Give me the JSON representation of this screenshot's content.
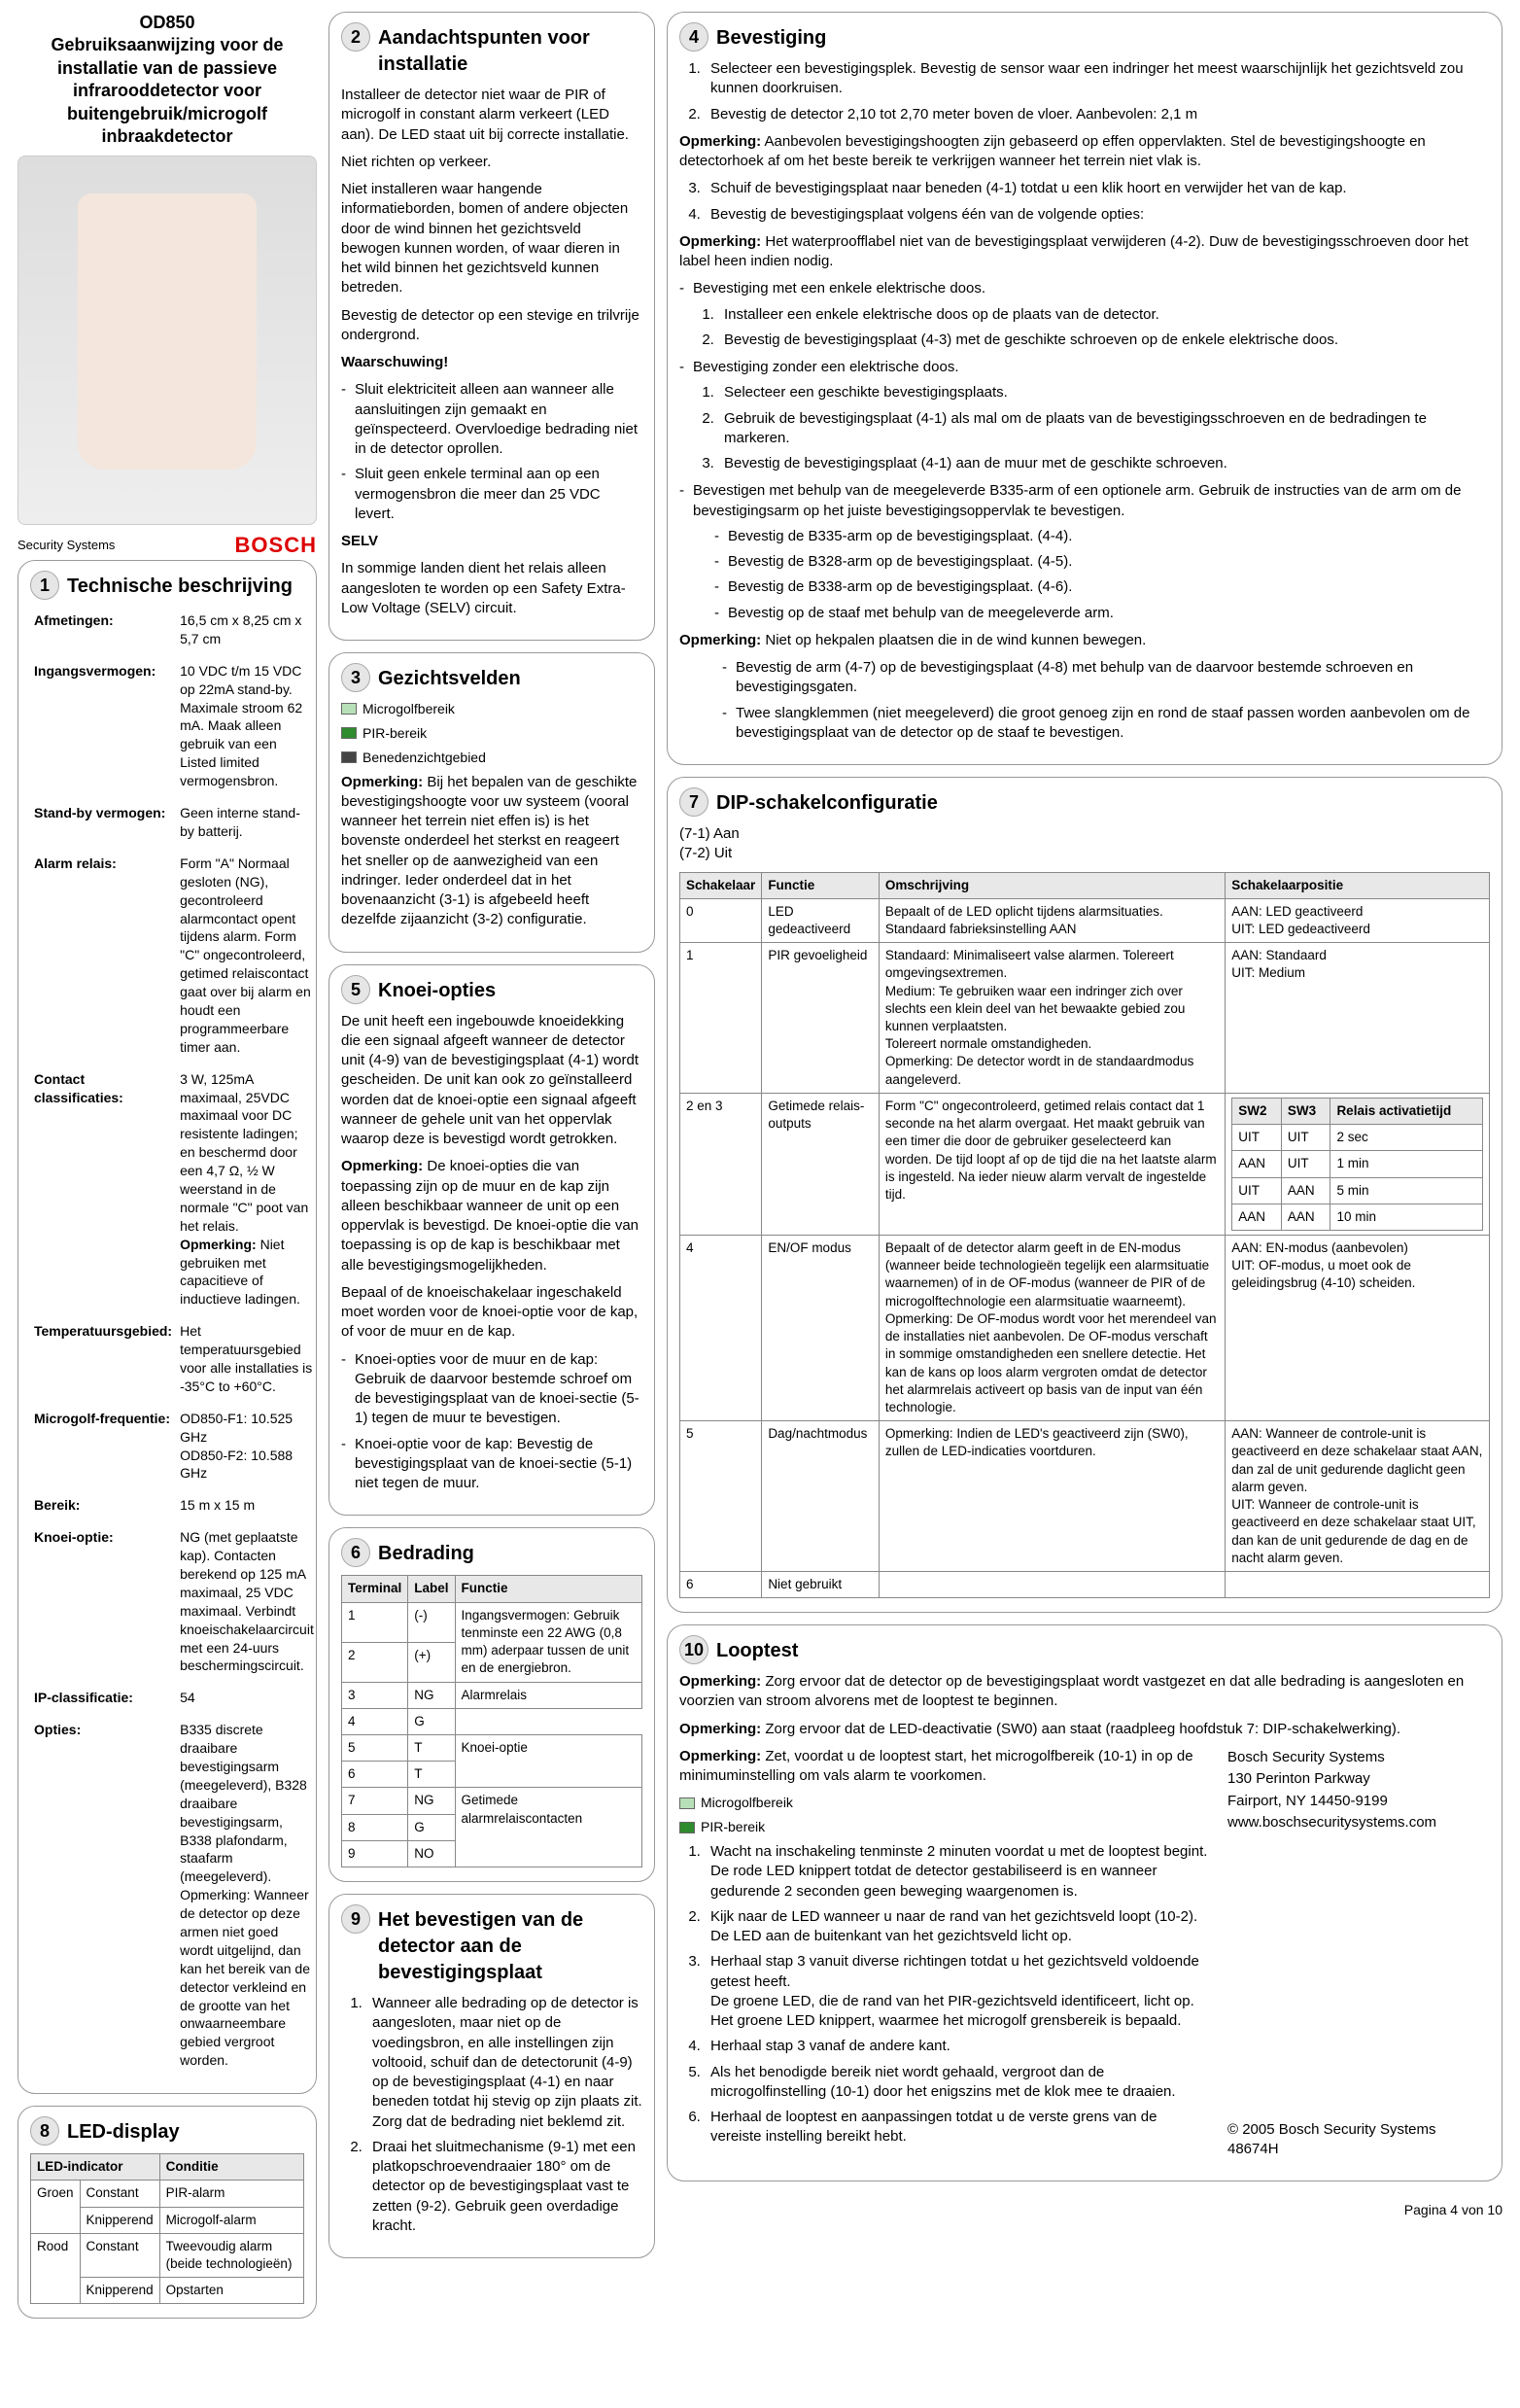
{
  "header": {
    "model": "OD850",
    "title": "Gebruiksaanwijzing voor de installatie van de passieve infrarooddetector voor buitengebruik/microgolf inbraakdetector",
    "security_systems": "Security Systems",
    "brand": "BOSCH"
  },
  "colors": {
    "micro": "#b8e0b8",
    "pir": "#2e8b2e",
    "below": "#444444"
  },
  "s1": {
    "num": "1",
    "title": "Technische beschrijving",
    "rows": [
      {
        "k": "Afmetingen:",
        "v": "16,5 cm x 8,25 cm x 5,7 cm"
      },
      {
        "k": "Ingangsvermogen:",
        "v": "10 VDC t/m 15 VDC op 22mA stand-by. Maximale stroom 62 mA. Maak alleen gebruik van een Listed limited vermogensbron."
      },
      {
        "k": "Stand-by vermogen:",
        "v": "Geen interne stand-by batterij."
      },
      {
        "k": "Alarm relais:",
        "v": "Form \"A\" Normaal gesloten (NG), gecontroleerd alarmcontact opent tijdens alarm. Form \"C\" ongecontroleerd, getimed relaiscontact gaat over bij alarm en houdt een programmeerbare timer aan."
      },
      {
        "k": "Contact classificaties:",
        "v": "3 W, 125mA maximaal, 25VDC maximaal voor DC resistente ladingen; en beschermd door een 4,7 Ω, ½ W weerstand in de normale \"C\" poot van het relais.",
        "extra_b": "Opmerking:",
        "extra": " Niet gebruiken met capacitieve of inductieve ladingen."
      },
      {
        "k": "Temperatuursgebied:",
        "v": "Het temperatuursgebied voor alle installaties is -35°C to +60°C."
      },
      {
        "k": "Microgolf-frequentie:",
        "v": "OD850-F1: 10.525 GHz\nOD850-F2: 10.588 GHz"
      },
      {
        "k": "Bereik:",
        "v": "15 m x 15 m"
      },
      {
        "k": "Knoei-optie:",
        "v": "NG (met geplaatste kap). Contacten berekend op 125 mA maximaal, 25 VDC maximaal. Verbindt knoeischakelaarcircuit met een 24-uurs beschermingscircuit."
      },
      {
        "k": "IP-classificatie:",
        "v": "54"
      },
      {
        "k": "Opties:",
        "v": "B335 discrete draaibare bevestigingsarm (meegeleverd), B328 draaibare bevestigingsarm, B338 plafondarm, staafarm (meegeleverd). Opmerking: Wanneer de detector op deze armen niet goed wordt uitgelijnd, dan kan het bereik van de detector verkleind en de grootte van het onwaarneembare gebied vergroot worden."
      }
    ]
  },
  "s2": {
    "num": "2",
    "title": "Aandachtspunten voor installatie",
    "paras": [
      "Installeer de detector niet waar de PIR of microgolf in constant alarm verkeert (LED aan). De LED staat uit bij correcte installatie.",
      "Niet richten op verkeer.",
      "Niet installeren waar hangende informatieborden, bomen of andere objecten door de wind binnen het gezichtsveld bewogen kunnen worden, of waar dieren in het wild binnen het gezichtsveld kunnen betreden.",
      "Bevestig de detector op een stevige en trilvrije ondergrond."
    ],
    "warn": "Waarschuwing!",
    "warns": [
      "Sluit elektriciteit alleen aan wanneer alle aansluitingen zijn gemaakt en geïnspecteerd. Overvloedige bedrading niet in de detector oprollen.",
      "Sluit geen enkele terminal aan op een vermogensbron die meer dan 25 VDC levert."
    ],
    "selv_h": "SELV",
    "selv": "In sommige landen dient het relais alleen aangesloten te worden op een Safety Extra-Low Voltage (SELV) circuit."
  },
  "s3": {
    "num": "3",
    "title": "Gezichtsvelden",
    "items": [
      {
        "color": "micro",
        "label": "Microgolfbereik"
      },
      {
        "color": "pir",
        "label": "PIR-bereik"
      },
      {
        "color": "below",
        "label": "Benedenzichtgebied"
      }
    ],
    "op_b": "Opmerking:",
    "op": " Bij het bepalen van de geschikte bevestigingshoogte voor uw systeem (vooral wanneer het terrein niet effen is) is het bovenste onderdeel het sterkst en reageert het sneller op de aanwezigheid van een indringer. Ieder onderdeel dat in het bovenaanzicht (3-1) is afgebeeld heeft dezelfde zijaanzicht (3-2) configuratie."
  },
  "s5": {
    "num": "5",
    "title": "Knoei-opties",
    "p1": "De unit heeft een ingebouwde knoeidekking die een signaal afgeeft wanneer de detector unit (4-9) van de bevestigingsplaat (4-1) wordt gescheiden. De unit kan ook zo geïnstalleerd worden dat de knoei-optie een signaal afgeeft wanneer de gehele unit van het oppervlak waarop deze is bevestigd wordt getrokken.",
    "op_b": "Opmerking:",
    "op": " De knoei-opties die van toepassing zijn op de muur en de kap zijn alleen beschikbaar wanneer de unit op een oppervlak is bevestigd. De knoei-optie die van toepassing is op de kap is beschikbaar met alle bevestigingsmogelijkheden.",
    "p2": "Bepaal of de knoeischakelaar ingeschakeld moet worden voor de knoei-optie voor de kap, of voor de muur en de kap.",
    "bullets": [
      "Knoei-opties voor de muur en de kap:  Gebruik de daarvoor bestemde schroef om de bevestigingsplaat van de knoei-sectie (5-1) tegen de muur te bevestigen.",
      "Knoei-optie voor de kap: Bevestig de bevestigingsplaat van de knoei-sectie (5-1) niet tegen de muur."
    ]
  },
  "s6": {
    "num": "6",
    "title": "Bedrading",
    "head": [
      "Terminal",
      "Label",
      "Functie"
    ],
    "rows": [
      {
        "c": [
          "1",
          "(-)"
        ],
        "span": true,
        "f": "Ingangsvermogen: Gebruik tenminste een 22 AWG (0,8 mm) aderpaar tussen de unit en de energiebron."
      },
      {
        "c": [
          "2",
          "(+)"
        ]
      },
      {
        "c": [
          "3",
          "NG"
        ],
        "f": "Alarmrelais"
      },
      {
        "c": [
          "4",
          "G"
        ]
      },
      {
        "c": [
          "5",
          "T"
        ],
        "span": true,
        "f": "Knoei-optie"
      },
      {
        "c": [
          "6",
          "T"
        ]
      },
      {
        "c": [
          "7",
          "NG"
        ],
        "span3": true,
        "f": "Getimede alarmrelaiscontacten"
      },
      {
        "c": [
          "8",
          "G"
        ]
      },
      {
        "c": [
          "9",
          "NO"
        ]
      }
    ]
  },
  "s4": {
    "num": "4",
    "title": "Bevestiging",
    "ol1": [
      "Selecteer een bevestigingsplek. Bevestig de sensor waar een indringer het meest waarschijnlijk het gezichtsveld zou kunnen doorkruisen.",
      "Bevestig de detector 2,10 tot 2,70 meter boven de vloer. Aanbevolen: 2,1 m"
    ],
    "op1_b": "Opmerking:",
    "op1": " Aanbevolen bevestigingshoogten zijn gebaseerd op effen oppervlakten. Stel de bevestigingshoogte en detectorhoek af om het beste bereik te verkrijgen wanneer het terrein niet vlak is.",
    "ol2_start": 3,
    "ol2": [
      "Schuif de bevestigingsplaat naar beneden (4-1) totdat u een klik hoort en verwijder het van de kap.",
      "Bevestig de bevestigingsplaat volgens één van de volgende opties:"
    ],
    "op2_b": "Opmerking:",
    "op2": " Het waterproofflabel niet van de bevestigingsplaat verwijderen (4-2). Duw de bevestigingsschroeven door het label heen indien nodig.",
    "bA_t": "Bevestiging met een enkele elektrische doos.",
    "bA": [
      "Installeer een enkele elektrische doos op de plaats van de detector.",
      "Bevestig de bevestigingsplaat (4-3) met de geschikte schroeven op de enkele elektrische doos."
    ],
    "bB_t": "Bevestiging zonder een elektrische doos.",
    "bB": [
      "Selecteer een geschikte bevestigingsplaats.",
      "Gebruik de bevestigingsplaat (4-1) als mal om de plaats van de bevestigingsschroeven en de bedradingen te markeren.",
      "Bevestig de bevestigingsplaat (4-1) aan de muur met de geschikte schroeven."
    ],
    "bC_t": "Bevestigen met behulp van de meegeleverde B335-arm of een optionele arm. Gebruik de instructies van de arm om de bevestigingsarm op het juiste bevestigingsoppervlak te bevestigen.",
    "bC": [
      "Bevestig de B335-arm op de bevestigingsplaat. (4-4).",
      "Bevestig de B328-arm op de bevestigingsplaat. (4-5).",
      "Bevestig de B338-arm op de bevestigingsplaat. (4-6).",
      "Bevestig op de staaf met behulp van de meegeleverde arm."
    ],
    "op3_b": "Opmerking:",
    "op3": " Niet op hekpalen plaatsen die in de wind kunnen bewegen.",
    "bD": [
      "Bevestig de arm (4-7) op de bevestigingsplaat (4-8) met behulp van de daarvoor bestemde schroeven en bevestigingsgaten.",
      "Twee slangklemmen (niet meegeleverd) die groot genoeg zijn en rond de staaf passen worden aanbevolen om de bevestigingsplaat van de detector op de staaf te bevestigen."
    ]
  },
  "s7": {
    "num": "7",
    "title": "DIP-schakelconfiguratie",
    "pre": "(7-1) Aan\n(7-2) Uit",
    "head": [
      "Schakelaar",
      "Functie",
      "Omschrijving",
      "Schakelaarpositie"
    ],
    "rows": [
      {
        "a": "0",
        "b": "LED gedeactiveerd",
        "c": "Bepaalt of de LED oplicht tijdens alarmsituaties.\nStandaard fabrieksinstelling AAN",
        "d": "AAN: LED geactiveerd\nUIT: LED gedeactiveerd"
      },
      {
        "a": "1",
        "b": "PIR gevoeligheid",
        "c": "Standaard: Minimaliseert valse alarmen. Tolereert omgevingsextremen.\nMedium: Te gebruiken waar een indringer zich over slechts een klein deel van het bewaakte gebied zou kunnen verplaatsten.\nTolereert normale omstandigheden.\nOpmerking: De detector wordt in de standaardmodus aangeleverd.",
        "d": "AAN: Standaard\nUIT: Medium"
      },
      {
        "a": "2 en 3",
        "b": "Getimede relais-outputs",
        "c": "Form \"C\" ongecontroleerd, getimed relais contact dat 1 seconde na het alarm overgaat. Het maakt gebruik van een timer die door de gebruiker geselecteerd kan worden. De tijd loopt af op de tijd die na het laatste alarm is ingesteld. Na ieder nieuw alarm vervalt de ingestelde tijd.",
        "d_nest": {
          "head": [
            "SW2",
            "SW3",
            "Relais activatietijd"
          ],
          "rows": [
            [
              "UIT",
              "UIT",
              "2 sec"
            ],
            [
              "AAN",
              "UIT",
              "1 min"
            ],
            [
              "UIT",
              "AAN",
              "5 min"
            ],
            [
              "AAN",
              "AAN",
              "10 min"
            ]
          ]
        }
      },
      {
        "a": "4",
        "b": "EN/OF modus",
        "c": "Bepaalt of de detector alarm geeft in de EN-modus (wanneer beide technologieën tegelijk een alarmsituatie waarnemen) of in de OF-modus (wanneer de PIR of de microgolftechnologie een alarmsituatie waarneemt).\nOpmerking: De OF-modus wordt voor het merendeel van de installaties niet aanbevolen.  De OF-modus verschaft in sommige omstandigheden een snellere detectie. Het kan de kans op loos alarm vergroten omdat de detector het alarmrelais activeert op basis van de input van één technologie.",
        "d": "AAN: EN-modus (aanbevolen)\nUIT: OF-modus, u moet ook de geleidingsbrug (4-10) scheiden."
      },
      {
        "a": "5",
        "b": "Dag/nachtmodus",
        "c": "Opmerking: Indien de LED's geactiveerd zijn (SW0), zullen de LED-indicaties voortduren.",
        "d": "AAN: Wanneer de controle-unit is geactiveerd en deze schakelaar staat AAN, dan zal de unit gedurende daglicht geen alarm geven.\nUIT: Wanneer de controle-unit is geactiveerd en deze schakelaar staat UIT, dan kan de unit gedurende de dag en de nacht alarm geven."
      },
      {
        "a": "6",
        "b": "Niet gebruikt",
        "c": "",
        "d": ""
      }
    ]
  },
  "s8": {
    "num": "8",
    "title": "LED-display",
    "head": [
      "LED-indicator",
      "",
      "Conditie"
    ],
    "rows": [
      [
        "Groen",
        "Constant",
        "PIR-alarm"
      ],
      [
        "",
        "Knipperend",
        "Microgolf-alarm"
      ],
      [
        "Rood",
        "Constant",
        "Tweevoudig alarm (beide technologieën)"
      ],
      [
        "",
        "Knipperend",
        "Opstarten"
      ]
    ]
  },
  "s9": {
    "num": "9",
    "title": "Het bevestigen van de detector aan de bevestigingsplaat",
    "ol": [
      "Wanneer alle bedrading op de detector is aangesloten, maar niet op de voedingsbron, en alle instellingen zijn voltooid, schuif dan de detectorunit (4-9) op de bevestigingsplaat (4-1) en naar beneden totdat hij stevig op zijn plaats zit.  Zorg dat de bedrading niet beklemd zit.",
      "Draai het sluitmechanisme (9-1) met een platkopschroevendraaier 180° om de detector op de bevestigingsplaat vast te zetten (9-2). Gebruik geen overdadige kracht."
    ]
  },
  "s10": {
    "num": "10",
    "title": "Looptest",
    "op1_b": "Opmerking:",
    "op1": " Zorg ervoor dat de detector op de bevestigingsplaat wordt vastgezet en dat alle bedrading is aangesloten en voorzien van stroom alvorens met de looptest te beginnen.",
    "op2_b": "Opmerking:",
    "op2": " Zorg ervoor dat de LED-deactivatie (SW0) aan staat (raadpleeg hoofdstuk 7: DIP-schakelwerking).",
    "op3_b": "Opmerking:",
    "op3": " Zet, voordat u de looptest start, het microgolfbereik (10-1) in op de minimuminstelling om vals alarm te voorkomen.",
    "legend": [
      {
        "color": "micro",
        "label": "Microgolfbereik"
      },
      {
        "color": "pir",
        "label": "PIR-bereik"
      }
    ],
    "ol": [
      "Wacht na inschakeling tenminste 2 minuten voordat u met de looptest begint.  De rode LED knippert totdat de detector gestabiliseerd is en wanneer gedurende 2 seconden geen beweging waargenomen is.",
      "Kijk naar de LED wanneer u naar de rand van het gezichtsveld loopt (10-2). De LED aan de buitenkant van het gezichtsveld licht op.",
      "Herhaal stap 3 vanuit diverse richtingen totdat u het gezichtsveld voldoende getest heeft.\nDe groene LED, die de rand van het PIR-gezichtsveld identificeert, licht op.\nHet groene LED knippert, waarmee het microgolf grensbereik is bepaald.",
      "Herhaal stap 3 vanaf de andere kant.",
      "Als het benodigde bereik niet wordt gehaald, vergroot dan de microgolfinstelling (10-1) door het enigszins met de klok mee te draaien.",
      "Herhaal de looptest en aanpassingen totdat u de verste grens van de vereiste instelling bereikt hebt."
    ],
    "addr": [
      "Bosch Security Systems",
      "130 Perinton Parkway",
      "Fairport, NY 14450-9199",
      "www.boschsecuritysystems.com"
    ],
    "copy": "© 2005 Bosch Security Systems\n48674H"
  },
  "footer": "Pagina 4 von 10"
}
